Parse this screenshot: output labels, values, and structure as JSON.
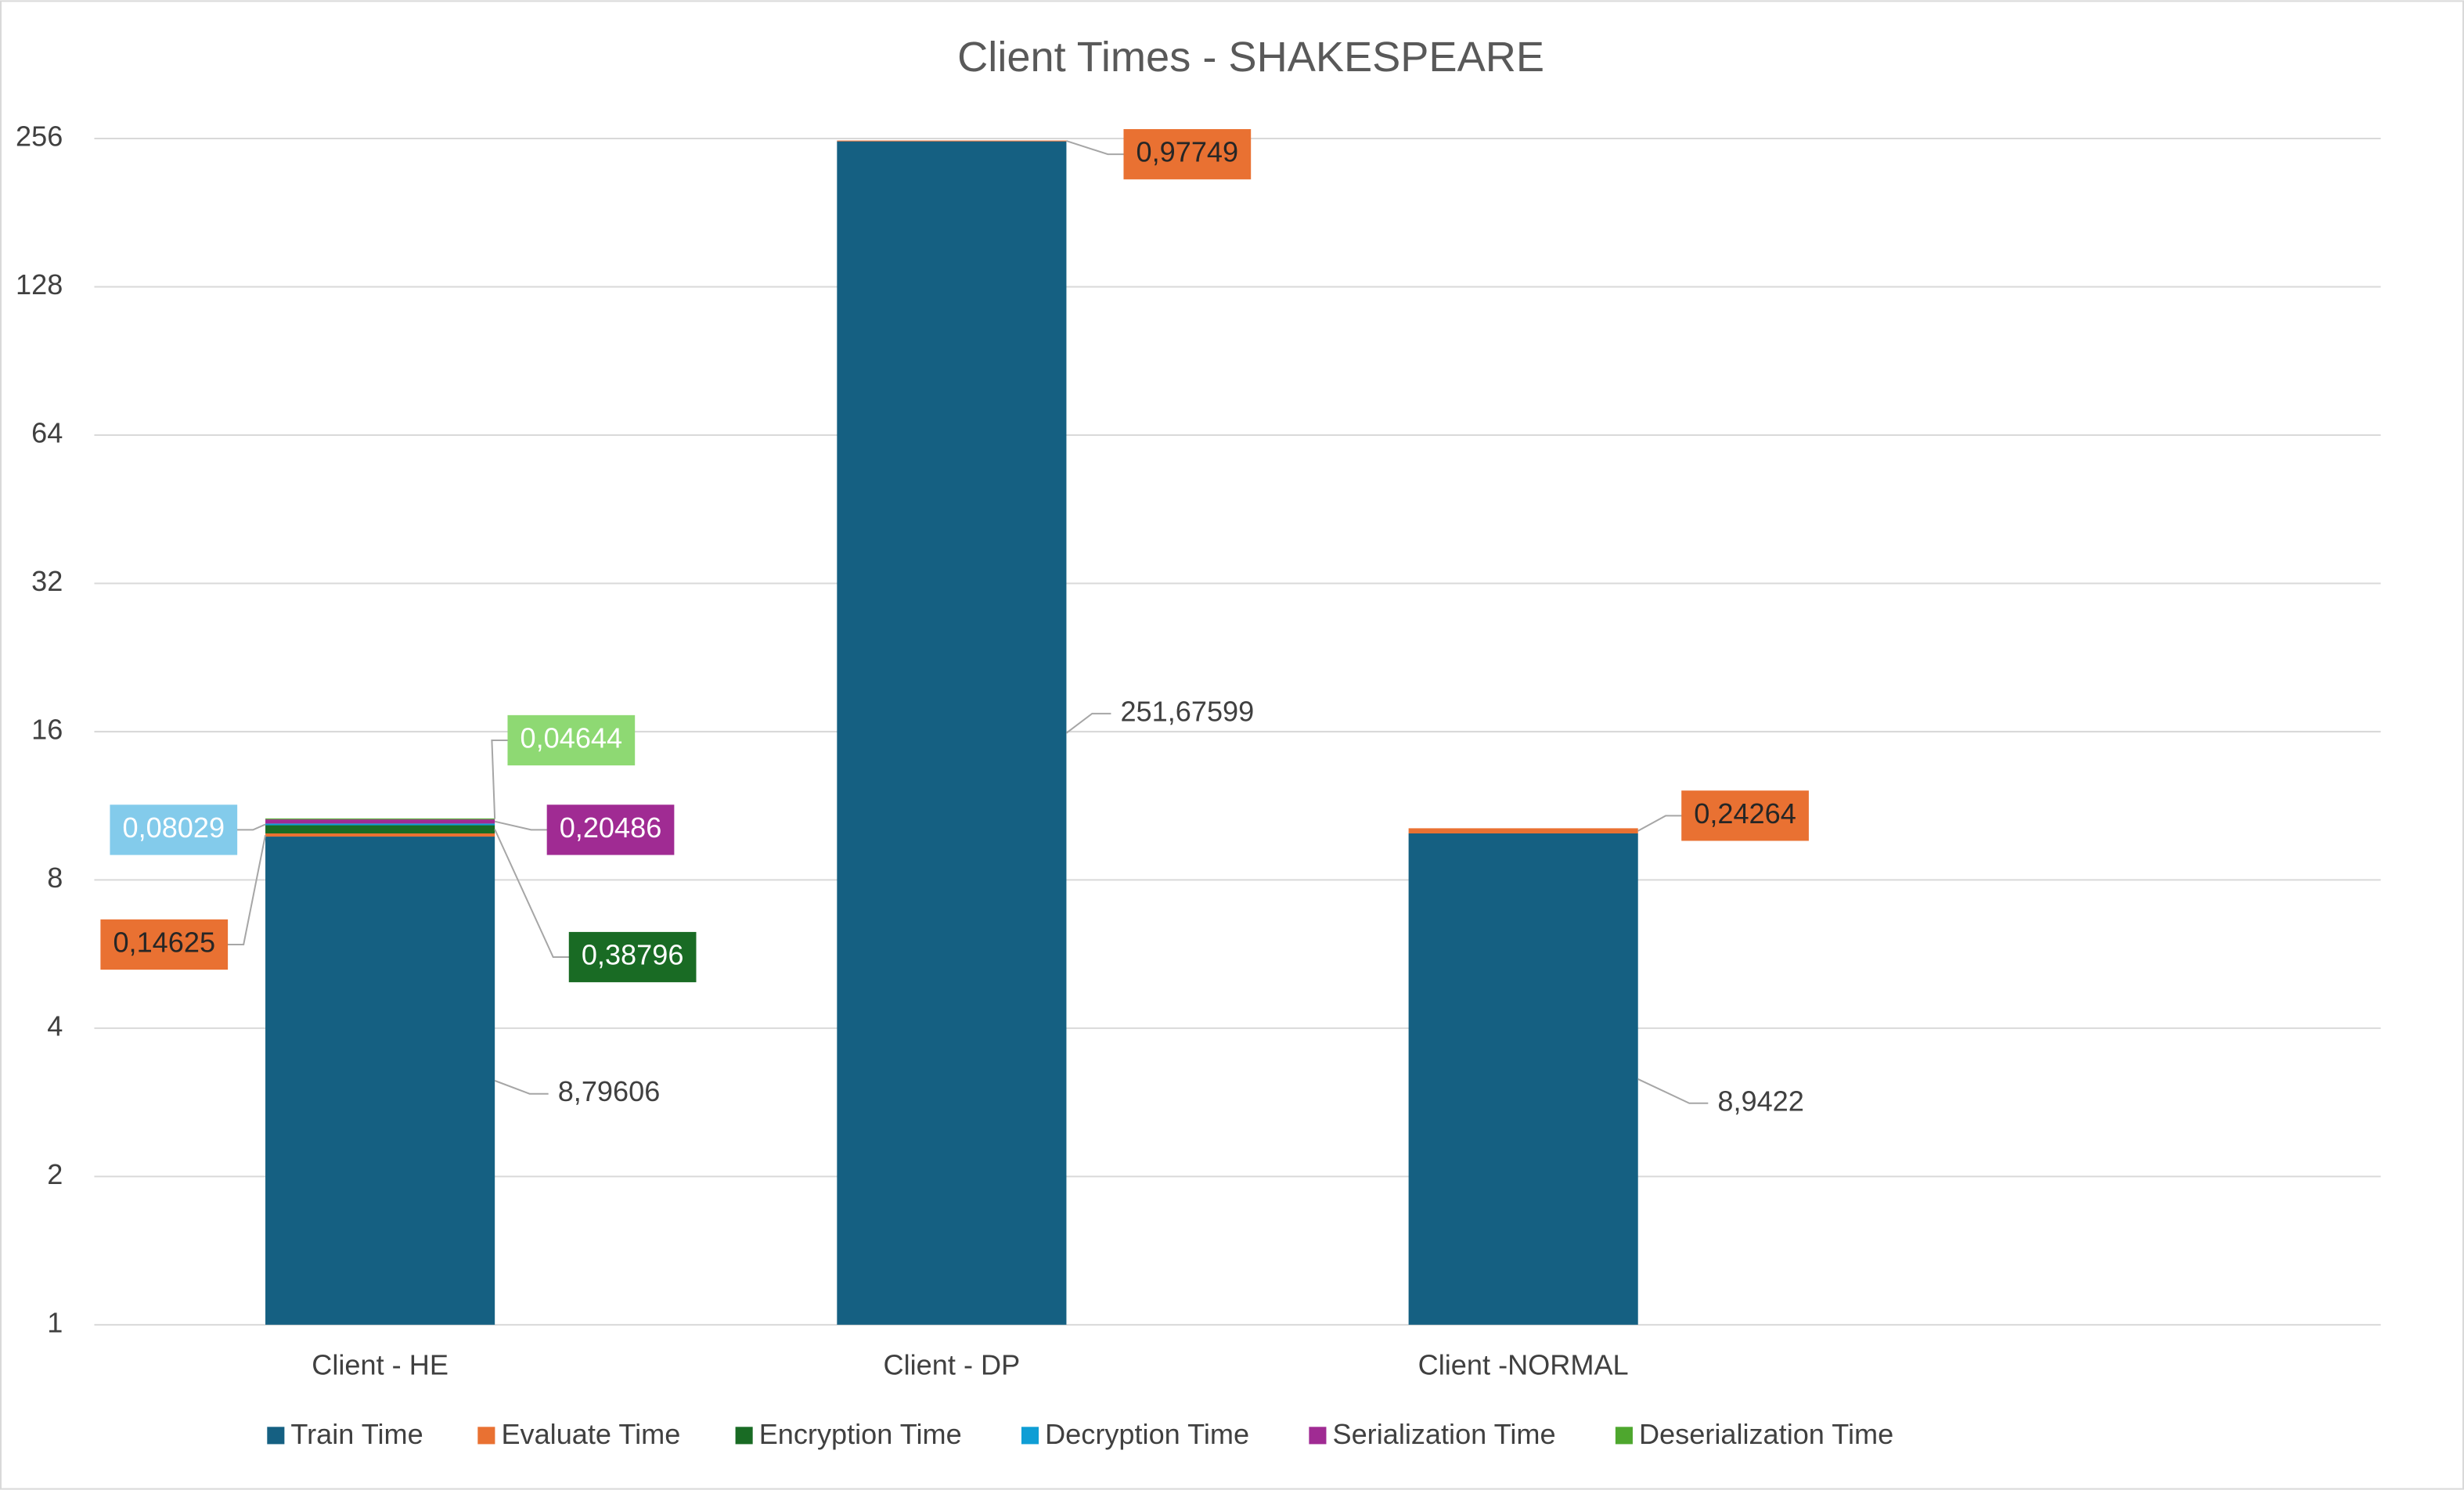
{
  "chart_data": {
    "type": "bar",
    "stacked": true,
    "log_scale": true,
    "log_base": 2,
    "grid": true,
    "legend_position": "bottom",
    "title": "Client Times - SHAKESPEARE",
    "categories": [
      "Client - HE",
      "Client - DP",
      "Client -NORMAL"
    ],
    "ylim": [
      1,
      256
    ],
    "yticks": [
      1,
      2,
      4,
      8,
      16,
      32,
      64,
      128,
      256
    ],
    "series": [
      {
        "name": "Train Time",
        "color": "#156082",
        "values": [
          8.79606,
          251.67599,
          8.9422
        ],
        "value_labels": [
          "8,79606",
          "251,67599",
          "8,9422"
        ]
      },
      {
        "name": "Evaluate Time",
        "color": "#e97132",
        "values": [
          0.14625,
          0.97749,
          0.24264
        ],
        "value_labels": [
          "0,14625",
          "0,97749",
          "0,24264"
        ]
      },
      {
        "name": "Encryption Time",
        "color": "#196b24",
        "values": [
          0.38796,
          null,
          null
        ],
        "value_labels": [
          "0,38796",
          null,
          null
        ]
      },
      {
        "name": "Decryption Time",
        "color": "#0f9ed5",
        "label_color": "#83cbeb",
        "values": [
          0.08029,
          null,
          null
        ],
        "value_labels": [
          "0,08029",
          null,
          null
        ]
      },
      {
        "name": "Serialization Time",
        "color": "#a02b93",
        "values": [
          0.20486,
          null,
          null
        ],
        "value_labels": [
          "0,20486",
          null,
          null
        ]
      },
      {
        "name": "Deserialization Time",
        "color": "#4ea72e",
        "label_color": "#8ed973",
        "values": [
          0.04644,
          null,
          null
        ],
        "value_labels": [
          "0,04644",
          null,
          null
        ]
      }
    ]
  }
}
